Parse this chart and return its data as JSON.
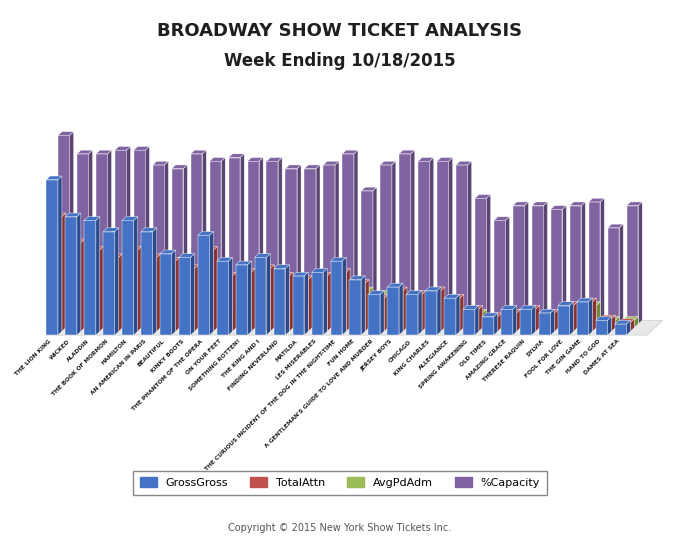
{
  "title1": "BROADWAY SHOW TICKET ANALYSIS",
  "title2": "Week Ending 10/18/2015",
  "copyright": "Copyright © 2015 New York Show Tickets Inc.",
  "shows": [
    "THE LION KING",
    "WICKED",
    "ALADDIN",
    "THE BOOK OF MORMON",
    "HAMILTON",
    "AN AMERICAN IN PARIS",
    "BEAUTIFUL",
    "KINKY BOOTS",
    "THE PHANTOM OF THE OPERA",
    "ON YOUR FEET",
    "SOMETHING ROTTEN!",
    "THE KING AND I",
    "FINDING NEVERLAND",
    "MATILDA",
    "LES MISERABLES",
    "THE CURIOUS INCIDENT OF THE DOG IN THE NIGHT-TIME",
    "FUN HOME",
    "A GENTLEMAN'S GUIDE TO LOVE AND MURDER",
    "JERSEY BOYS",
    "CHICAGO",
    "KING CHARLES",
    "ALLEGIANCE",
    "SPRING AWAKENING",
    "OLD TIMES",
    "AMAZING GRACE",
    "THERESE RAQUIN",
    "SYLVIA",
    "FOOL FOR LOVE",
    "THE GIN GAME",
    "HAND TO GOD",
    "DAMES AT SEA"
  ],
  "GrossGross": [
    2.1,
    1.6,
    1.55,
    1.4,
    1.55,
    1.4,
    1.1,
    1.05,
    1.35,
    1.0,
    0.95,
    1.05,
    0.9,
    0.8,
    0.85,
    1.0,
    0.75,
    0.55,
    0.65,
    0.55,
    0.6,
    0.5,
    0.35,
    0.25,
    0.35,
    0.35,
    0.3,
    0.4,
    0.45,
    0.2,
    0.15
  ],
  "TotalAttn": [
    1.55,
    1.2,
    1.1,
    1.0,
    1.1,
    1.0,
    0.95,
    0.85,
    1.1,
    0.75,
    0.8,
    0.85,
    0.75,
    0.7,
    0.75,
    0.8,
    0.65,
    0.45,
    0.55,
    0.5,
    0.55,
    0.45,
    0.3,
    0.2,
    0.25,
    0.3,
    0.25,
    0.35,
    0.4,
    0.17,
    0.12
  ],
  "AvgPdAdm": [
    0.4,
    0.3,
    0.55,
    0.3,
    0.75,
    0.35,
    0.7,
    0.3,
    0.3,
    0.2,
    0.45,
    0.25,
    0.2,
    0.2,
    0.25,
    0.6,
    0.5,
    0.45,
    0.3,
    0.25,
    0.2,
    0.2,
    0.2,
    0.1,
    0.2,
    0.15,
    0.15,
    0.2,
    0.3,
    0.1,
    0.1
  ],
  "PctCapacity": [
    2.55,
    2.3,
    2.3,
    2.35,
    2.35,
    2.15,
    2.1,
    2.3,
    2.2,
    2.25,
    2.2,
    2.2,
    2.1,
    2.1,
    2.15,
    2.3,
    1.8,
    2.15,
    2.3,
    2.2,
    2.2,
    2.15,
    1.7,
    1.4,
    1.6,
    1.6,
    1.55,
    1.6,
    1.65,
    1.3,
    1.6
  ],
  "colors": {
    "GrossGross": "#4472C4",
    "TotalAttn": "#C0504D",
    "AvgPdAdm": "#9BBB59",
    "PctCapacity": "#8064A2"
  },
  "colors_dark": {
    "GrossGross": "#2A4A8C",
    "TotalAttn": "#8B3330",
    "AvgPdAdm": "#6B8A3A",
    "PctCapacity": "#5A4472"
  },
  "legend_labels": [
    "GrossGross",
    "TotalAttn",
    "AvgPdAdm",
    "%Capacity"
  ],
  "background_color": "#FFFFFF",
  "title_color": "#1F1F1F"
}
